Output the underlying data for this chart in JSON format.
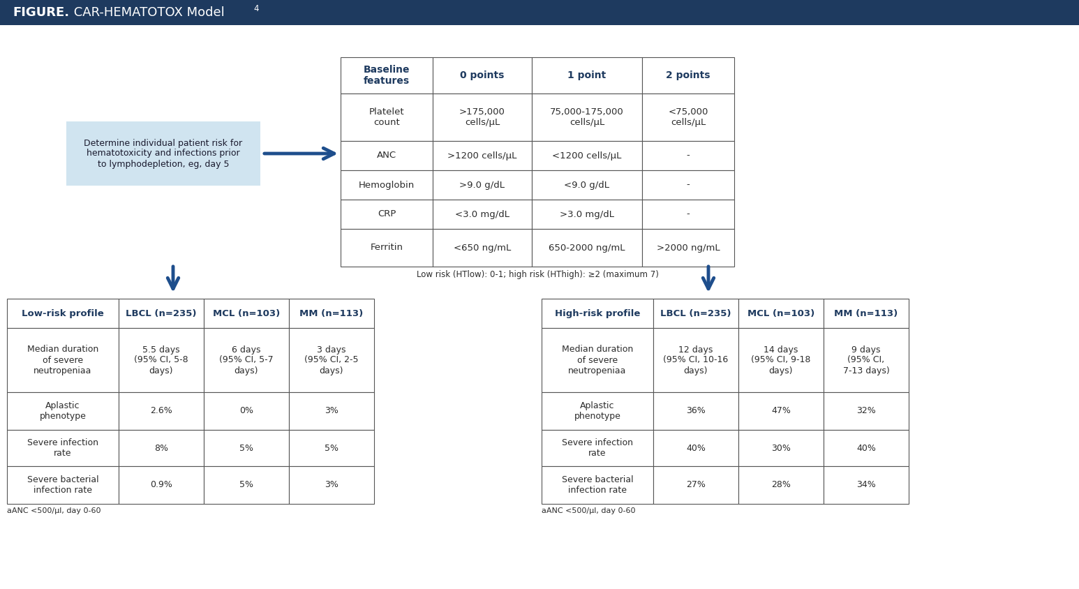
{
  "title_bold": "FIGURE.",
  "title_rest": " CAR-HEMATOTOX Model",
  "title_sup": "4",
  "header_bg": "#1e3a5f",
  "header_text_color": "#ffffff",
  "background_color": "#ffffff",
  "light_blue_box_color": "#d0e4f0",
  "dark_blue_arrow": "#1e4e8c",
  "border_color": "#555555",
  "header_text_color_table": "#1e3a5f",
  "body_text_color": "#2c2c2c",
  "left_box_text": "Determine individual patient risk for\nhematotoxicity and infections prior\nto lymphodepletion, eg, day 5",
  "top_table_headers": [
    "Baseline\nfeatures",
    "0 points",
    "1 point",
    "2 points"
  ],
  "top_table_rows": [
    [
      "Platelet\ncount",
      ">175,000\ncells/μL",
      "75,000-175,000\ncells/μL",
      "<75,000\ncells/μL"
    ],
    [
      "ANC",
      ">1200 cells/μL",
      "<1200 cells/μL",
      "-"
    ],
    [
      "Hemoglobin",
      ">9.0 g/dL",
      "<9.0 g/dL",
      "-"
    ],
    [
      "CRP",
      "<3.0 mg/dL",
      ">3.0 mg/dL",
      "-"
    ],
    [
      "Ferritin",
      "<650 ng/mL",
      "650-2000 ng/mL",
      ">2000 ng/mL"
    ]
  ],
  "top_table_note": "Low risk (HTlow): 0-1; high risk (HThigh): ≥2 (maximum 7)",
  "low_risk_headers": [
    "Low-risk profile",
    "LBCL (n=235)",
    "MCL (n=103)",
    "MM (n=113)"
  ],
  "low_risk_rows": [
    [
      "Median duration\nof severe\nneutropeniaa",
      "5.5 days\n(95% CI, 5-8\ndays)",
      "6 days\n(95% CI, 5-7\ndays)",
      "3 days\n(95% CI, 2-5\ndays)"
    ],
    [
      "Aplastic\nphenotype",
      "2.6%",
      "0%",
      "3%"
    ],
    [
      "Severe infection\nrate",
      "8%",
      "5%",
      "5%"
    ],
    [
      "Severe bacterial\ninfection rate",
      "0.9%",
      "5%",
      "3%"
    ]
  ],
  "low_risk_footnote": "aANC <500/μl, day 0-60",
  "high_risk_headers": [
    "High-risk profile",
    "LBCL (n=235)",
    "MCL (n=103)",
    "MM (n=113)"
  ],
  "high_risk_rows": [
    [
      "Median duration\nof severe\nneutropeniaa",
      "12 days\n(95% CI, 10-16\ndays)",
      "14 days\n(95% CI, 9-18\ndays)",
      "9 days\n(95% CI,\n7-13 days)"
    ],
    [
      "Aplastic\nphenotype",
      "36%",
      "47%",
      "32%"
    ],
    [
      "Severe infection\nrate",
      "40%",
      "30%",
      "40%"
    ],
    [
      "Severe bacterial\ninfection rate",
      "27%",
      "28%",
      "34%"
    ]
  ],
  "high_risk_footnote": "aANC <500/μl, day 0-60"
}
